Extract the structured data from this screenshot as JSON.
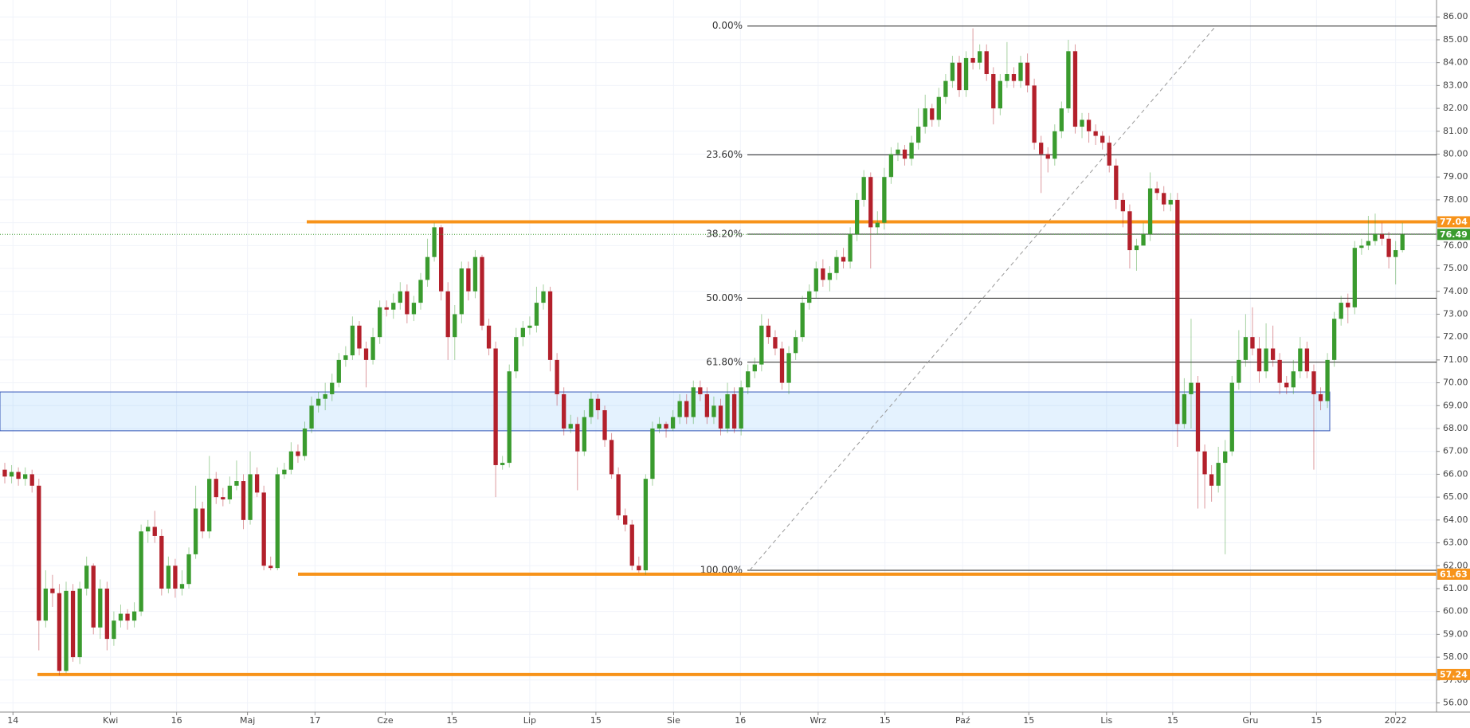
{
  "chart_data": {
    "type": "candlestick",
    "up_color": "#3a9b2e",
    "down_color": "#b3202b",
    "grid": true,
    "open": [
      66.2,
      65.9,
      66.1,
      65.8,
      66.0,
      65.5,
      59.6,
      61.0,
      60.8,
      57.4,
      60.9,
      58.0,
      61.0,
      62.0,
      59.3,
      61.0,
      58.8,
      59.6,
      59.9,
      59.6,
      60.0,
      63.5,
      63.7,
      63.3,
      61.0,
      62.0,
      61.0,
      61.2,
      62.5,
      64.5,
      63.5,
      65.8,
      65.0,
      64.9,
      65.5,
      65.7,
      64.0,
      66.0,
      65.2,
      62.0,
      61.9,
      66.0,
      66.2,
      67.0,
      66.8,
      68.0,
      69.0,
      69.3,
      69.5,
      70.0,
      71.0,
      71.2,
      72.5,
      71.5,
      71.0,
      72.0,
      73.3,
      73.2,
      73.5,
      74.0,
      73.0,
      73.5,
      74.5,
      75.5,
      76.8,
      74.0,
      72.0,
      73.0,
      75.0,
      74.0,
      75.5,
      72.5,
      71.5,
      66.4,
      66.5,
      70.5,
      72.0,
      72.4,
      72.5,
      73.5,
      74.0,
      71.0,
      69.5,
      68.0,
      68.2,
      67.0,
      68.5,
      69.3,
      68.8,
      67.5,
      66.0,
      64.2,
      63.8,
      62.0,
      61.8,
      65.8,
      68.0,
      68.2,
      68.0,
      68.5,
      69.2,
      68.5,
      69.8,
      69.5,
      68.5,
      69.0,
      68.0,
      69.5,
      68.0,
      69.8,
      70.5,
      70.8,
      72.5,
      72.0,
      71.5,
      70.0,
      71.3,
      72.0,
      73.5,
      74.0,
      75.0,
      74.5,
      74.8,
      75.5,
      75.3,
      76.5,
      78.0,
      79.0,
      76.8,
      77.0,
      79.0,
      80.0,
      80.2,
      79.8,
      80.5,
      81.2,
      82.0,
      81.5,
      82.5,
      83.2,
      84.0,
      82.8,
      84.2,
      84.0,
      84.5,
      83.5,
      82.0,
      83.2,
      83.5,
      83.2,
      84.0,
      83.0,
      80.5,
      80.0,
      79.8,
      81.0,
      82.0,
      84.5,
      81.2,
      81.5,
      81.0,
      80.8,
      80.5,
      79.5,
      78.0,
      77.5,
      75.8,
      76.0,
      76.5,
      78.5,
      78.3,
      77.8,
      78.0,
      68.2,
      69.5,
      70.0,
      67.0,
      66.0,
      65.5,
      66.5,
      67.0,
      70.0,
      71.0,
      72.0,
      71.5,
      70.5,
      71.5,
      71.0,
      70.0,
      69.8,
      70.5,
      71.5,
      70.5,
      69.5,
      69.2,
      71.0,
      72.8,
      73.5,
      73.3,
      75.9,
      76.0,
      76.2,
      76.5,
      76.3,
      75.5,
      75.8
    ],
    "high": [
      66.5,
      66.4,
      66.3,
      66.3,
      66.2,
      65.8,
      61.8,
      61.6,
      61.2,
      61.3,
      61.2,
      61.3,
      62.4,
      62.1,
      61.4,
      61.3,
      60.0,
      60.3,
      60.1,
      60.4,
      63.8,
      64.0,
      64.4,
      63.6,
      62.4,
      62.3,
      61.8,
      62.8,
      65.5,
      64.8,
      66.8,
      66.1,
      65.4,
      65.9,
      66.6,
      66.0,
      67.0,
      66.3,
      65.5,
      62.4,
      66.3,
      66.5,
      67.4,
      67.3,
      68.3,
      69.4,
      69.6,
      70.0,
      70.4,
      71.3,
      71.6,
      72.9,
      72.7,
      71.8,
      72.4,
      73.6,
      73.6,
      73.9,
      74.4,
      74.3,
      73.8,
      74.8,
      76.3,
      77.0,
      76.9,
      74.4,
      73.4,
      75.3,
      75.3,
      75.8,
      75.6,
      72.8,
      71.8,
      66.8,
      70.8,
      72.4,
      72.7,
      72.9,
      74.2,
      74.3,
      74.2,
      71.3,
      69.8,
      68.6,
      68.5,
      68.8,
      69.6,
      69.5,
      69.0,
      67.8,
      66.3,
      64.5,
      64.0,
      62.4,
      66.0,
      68.3,
      68.5,
      68.3,
      68.8,
      69.5,
      69.5,
      70.1,
      70.1,
      69.8,
      69.4,
      69.3,
      70.0,
      69.8,
      70.1,
      70.8,
      71.1,
      73.0,
      72.8,
      72.3,
      71.8,
      71.6,
      72.3,
      73.8,
      74.3,
      75.3,
      75.4,
      75.1,
      75.8,
      75.9,
      76.8,
      78.3,
      79.3,
      79.2,
      77.5,
      79.4,
      80.3,
      80.5,
      80.4,
      80.8,
      82.0,
      82.6,
      82.2,
      82.9,
      83.5,
      84.3,
      84.3,
      84.5,
      85.5,
      84.8,
      84.8,
      83.8,
      83.5,
      84.9,
      83.8,
      84.3,
      84.4,
      83.3,
      80.8,
      80.3,
      81.3,
      82.3,
      85.0,
      84.8,
      81.8,
      81.8,
      81.3,
      81.0,
      80.8,
      79.8,
      78.3,
      77.8,
      76.3,
      77.0,
      79.2,
      78.8,
      78.6,
      78.3,
      78.3,
      70.2,
      72.8,
      70.3,
      67.3,
      66.4,
      67.2,
      67.5,
      70.3,
      72.3,
      73.0,
      73.3,
      72.0,
      72.6,
      72.5,
      71.3,
      70.3,
      71.0,
      72.0,
      71.8,
      70.8,
      69.8,
      71.3,
      73.1,
      73.8,
      73.9,
      76.2,
      76.3,
      77.3,
      77.4,
      77.0,
      76.6,
      76.2,
      77.0
    ],
    "low": [
      65.6,
      65.6,
      65.5,
      65.5,
      65.2,
      58.3,
      59.3,
      60.2,
      57.2,
      57.3,
      57.8,
      57.7,
      60.7,
      59.0,
      58.8,
      58.3,
      58.5,
      59.3,
      59.2,
      59.3,
      59.8,
      63.0,
      63.0,
      60.7,
      60.8,
      60.6,
      60.7,
      61.0,
      62.3,
      63.2,
      63.2,
      64.7,
      64.6,
      64.7,
      65.3,
      63.6,
      63.8,
      65.0,
      61.8,
      61.8,
      61.8,
      65.8,
      66.0,
      66.5,
      66.6,
      67.8,
      68.7,
      68.8,
      69.2,
      69.8,
      70.7,
      71.0,
      71.2,
      69.8,
      70.8,
      71.7,
      72.9,
      72.8,
      73.2,
      72.6,
      72.7,
      73.2,
      74.2,
      75.3,
      73.6,
      71.0,
      71.0,
      72.6,
      73.6,
      73.7,
      72.3,
      71.2,
      65.0,
      66.2,
      66.3,
      70.2,
      71.6,
      72.1,
      72.2,
      73.2,
      70.5,
      69.0,
      67.7,
      67.8,
      65.3,
      66.8,
      68.2,
      68.4,
      67.2,
      65.8,
      64.0,
      63.5,
      61.8,
      61.7,
      61.6,
      65.5,
      67.8,
      67.6,
      67.9,
      68.2,
      68.2,
      68.2,
      69.2,
      68.2,
      68.2,
      67.7,
      67.8,
      67.8,
      67.7,
      69.5,
      70.2,
      70.5,
      71.7,
      71.2,
      69.7,
      69.5,
      71.0,
      71.8,
      73.2,
      73.7,
      74.2,
      74.0,
      74.5,
      75.0,
      75.0,
      76.2,
      77.7,
      75.0,
      76.5,
      76.7,
      78.7,
      79.7,
      79.5,
      79.5,
      80.2,
      80.9,
      81.2,
      81.2,
      82.2,
      82.9,
      82.5,
      82.5,
      83.7,
      83.7,
      83.2,
      81.3,
      81.7,
      82.9,
      82.9,
      82.9,
      82.7,
      80.2,
      78.3,
      79.2,
      79.5,
      80.7,
      81.8,
      80.9,
      80.7,
      80.5,
      80.4,
      80.2,
      79.2,
      77.6,
      76.8,
      75.0,
      74.9,
      76.2,
      76.2,
      78.0,
      77.5,
      77.5,
      67.2,
      68.0,
      68.0,
      64.5,
      64.5,
      64.8,
      65.2,
      62.5,
      66.8,
      69.7,
      70.7,
      71.2,
      70.0,
      70.2,
      70.7,
      69.5,
      69.5,
      69.5,
      70.2,
      70.2,
      66.2,
      68.8,
      68.9,
      70.7,
      72.5,
      72.6,
      73.0,
      75.6,
      75.8,
      76.0,
      76.0,
      75.0,
      74.3,
      75.7
    ],
    "close": [
      65.9,
      66.1,
      65.8,
      66.0,
      65.5,
      59.6,
      61.0,
      60.8,
      57.4,
      60.9,
      58.0,
      61.0,
      62.0,
      59.3,
      61.0,
      58.8,
      59.6,
      59.9,
      59.6,
      60.0,
      63.5,
      63.7,
      63.3,
      61.0,
      62.0,
      61.0,
      61.2,
      62.5,
      64.5,
      63.5,
      65.8,
      65.0,
      64.9,
      65.5,
      65.7,
      64.0,
      66.0,
      65.2,
      62.0,
      61.9,
      66.0,
      66.2,
      67.0,
      66.8,
      68.0,
      69.0,
      69.3,
      69.5,
      70.0,
      71.0,
      71.2,
      72.5,
      71.5,
      71.0,
      72.0,
      73.3,
      73.2,
      73.5,
      74.0,
      73.0,
      73.5,
      74.5,
      75.5,
      76.8,
      74.0,
      72.0,
      73.0,
      75.0,
      74.0,
      75.5,
      72.5,
      71.5,
      66.4,
      66.5,
      70.5,
      72.0,
      72.4,
      72.5,
      73.5,
      74.0,
      71.0,
      69.5,
      68.0,
      68.2,
      67.0,
      68.5,
      69.3,
      68.8,
      67.5,
      66.0,
      64.2,
      63.8,
      62.0,
      61.8,
      65.8,
      68.0,
      68.2,
      68.0,
      68.5,
      69.2,
      68.5,
      69.8,
      69.5,
      68.5,
      69.0,
      68.0,
      69.5,
      68.0,
      69.8,
      70.5,
      70.8,
      72.5,
      72.0,
      71.5,
      70.0,
      71.3,
      72.0,
      73.5,
      74.0,
      75.0,
      74.5,
      74.8,
      75.5,
      75.3,
      76.5,
      78.0,
      79.0,
      76.8,
      77.0,
      79.0,
      80.0,
      80.2,
      79.8,
      80.5,
      81.2,
      82.0,
      81.5,
      82.5,
      83.2,
      84.0,
      82.8,
      84.2,
      84.0,
      84.5,
      83.5,
      82.0,
      83.2,
      83.5,
      83.2,
      84.0,
      83.0,
      80.5,
      80.0,
      79.8,
      81.0,
      82.0,
      84.5,
      81.2,
      81.5,
      81.0,
      80.8,
      80.5,
      79.5,
      78.0,
      77.5,
      75.8,
      76.0,
      76.5,
      78.5,
      78.3,
      77.8,
      78.0,
      68.2,
      69.5,
      70.0,
      67.0,
      66.0,
      65.5,
      66.5,
      67.0,
      70.0,
      71.0,
      72.0,
      71.5,
      70.5,
      71.5,
      71.0,
      70.0,
      69.8,
      70.5,
      71.5,
      70.5,
      69.5,
      69.2,
      71.0,
      72.8,
      73.5,
      73.3,
      75.9,
      76.0,
      76.2,
      76.5,
      76.3,
      75.5,
      75.8,
      76.49
    ],
    "xlim": [
      -0.7,
      210
    ],
    "ylim": [
      55.6,
      86.74
    ],
    "xticks": [
      {
        "value": 1.2,
        "label": "14"
      },
      {
        "value": 15.5,
        "label": "Kwi"
      },
      {
        "value": 25.2,
        "label": "16"
      },
      {
        "value": 35.6,
        "label": "Maj"
      },
      {
        "value": 45.5,
        "label": "17"
      },
      {
        "value": 55.8,
        "label": "Cze"
      },
      {
        "value": 65.6,
        "label": "15"
      },
      {
        "value": 77.0,
        "label": "Lip"
      },
      {
        "value": 86.7,
        "label": "15"
      },
      {
        "value": 98.1,
        "label": "Sie"
      },
      {
        "value": 107.9,
        "label": "16"
      },
      {
        "value": 119.3,
        "label": "Wrz"
      },
      {
        "value": 129.1,
        "label": "15"
      },
      {
        "value": 140.5,
        "label": "Paź"
      },
      {
        "value": 150.2,
        "label": "15"
      },
      {
        "value": 161.6,
        "label": "Lis"
      },
      {
        "value": 171.3,
        "label": "15"
      },
      {
        "value": 182.7,
        "label": "Gru"
      },
      {
        "value": 192.4,
        "label": "15"
      },
      {
        "value": 204.0,
        "label": "2022"
      }
    ],
    "yticks": [
      {
        "value": 56,
        "label": "56.00"
      },
      {
        "value": 57,
        "label": "57.00"
      },
      {
        "value": 58,
        "label": "58.00"
      },
      {
        "value": 59,
        "label": "59.00"
      },
      {
        "value": 60,
        "label": "60.00"
      },
      {
        "value": 61,
        "label": "61.00"
      },
      {
        "value": 62,
        "label": "62.00"
      },
      {
        "value": 63,
        "label": "63.00"
      },
      {
        "value": 64,
        "label": "64.00"
      },
      {
        "value": 65,
        "label": "65.00"
      },
      {
        "value": 66,
        "label": "66.00"
      },
      {
        "value": 67,
        "label": "67.00"
      },
      {
        "value": 68,
        "label": "68.00"
      },
      {
        "value": 69,
        "label": "69.00"
      },
      {
        "value": 70,
        "label": "70.00"
      },
      {
        "value": 71,
        "label": "71.00"
      },
      {
        "value": 72,
        "label": "72.00"
      },
      {
        "value": 73,
        "label": "73.00"
      },
      {
        "value": 74,
        "label": "74.00"
      },
      {
        "value": 75,
        "label": "75.00"
      },
      {
        "value": 76,
        "label": "76.00"
      },
      {
        "value": 77,
        "label": "77.00"
      },
      {
        "value": 78,
        "label": "78.00"
      },
      {
        "value": 79,
        "label": "79.00"
      },
      {
        "value": 80,
        "label": "80.00"
      },
      {
        "value": 81,
        "label": "81.00"
      },
      {
        "value": 82,
        "label": "82.00"
      },
      {
        "value": 83,
        "label": "83.00"
      },
      {
        "value": 84,
        "label": "84.00"
      },
      {
        "value": 85,
        "label": "85.00"
      },
      {
        "value": 86,
        "label": "86.00"
      }
    ],
    "levels": [
      {
        "price": 77.04,
        "color": "#f7931a"
      },
      {
        "price": 61.63,
        "color": "#f7931a"
      },
      {
        "price": 57.24,
        "color": "#f7931a"
      }
    ],
    "zone": {
      "low": 67.9,
      "high": 69.6,
      "color": "#2196f3"
    },
    "fib_levels": [
      {
        "value": 0,
        "label": "0.00%",
        "price": 85.6
      },
      {
        "value": 23.6,
        "label": "23.60%",
        "price": 79.97
      },
      {
        "value": 38.2,
        "label": "38.20%",
        "price": 76.5
      },
      {
        "value": 50,
        "label": "50.00%",
        "price": 73.7
      },
      {
        "value": 61.8,
        "label": "61.80%",
        "price": 70.9
      },
      {
        "value": 100,
        "label": "100.00%",
        "price": 61.8
      }
    ]
  }
}
